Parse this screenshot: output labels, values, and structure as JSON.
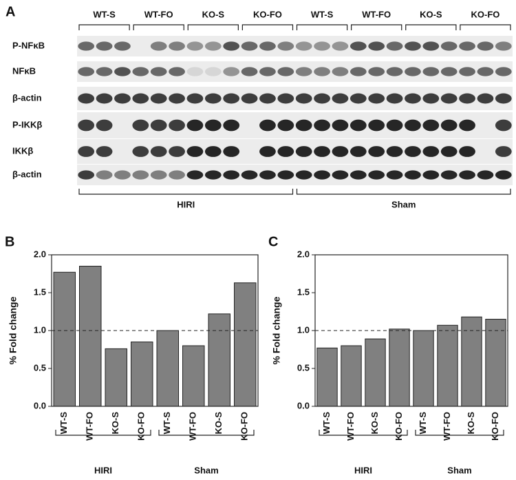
{
  "panel_a": {
    "label": "A",
    "groups": [
      "WT-S",
      "WT-FO",
      "KO-S",
      "KO-FO",
      "WT-S",
      "WT-FO",
      "KO-S",
      "KO-FO"
    ],
    "rows": [
      "P-NFκB",
      "NFκB",
      "β-actin",
      "P-IKKβ",
      "IKKβ",
      "β-actin"
    ],
    "conditions": [
      "HIRI",
      "Sham"
    ]
  },
  "chart_data": [
    {
      "type": "bar",
      "panel_label": "B",
      "ylabel": "% Fold change",
      "categories": [
        "WT-S",
        "WT-FO",
        "KO-S",
        "KO-FO",
        "WT-S",
        "WT-FO",
        "KO-S",
        "KO-FO"
      ],
      "values": [
        1.77,
        1.85,
        0.76,
        0.85,
        1.0,
        0.8,
        1.22,
        1.63
      ],
      "color": "#808080",
      "ylim": [
        0,
        2
      ],
      "yticks": [
        {
          "value": 0,
          "label": "0.0"
        },
        {
          "value": 0.5,
          "label": "0.5"
        },
        {
          "value": 1,
          "label": "1.0"
        },
        {
          "value": 1.5,
          "label": "1.5"
        },
        {
          "value": 2,
          "label": "2.0"
        }
      ],
      "reference_line": 1,
      "groups": [
        "HIRI",
        "Sham"
      ]
    },
    {
      "type": "bar",
      "panel_label": "C",
      "ylabel": "% Fold change",
      "categories": [
        "WT-S",
        "WT-FO",
        "KO-S",
        "KO-FO",
        "WT-S",
        "WT-FO",
        "KO-S",
        "KO-FO"
      ],
      "values": [
        0.77,
        0.8,
        0.89,
        1.02,
        1.0,
        1.07,
        1.18,
        1.15
      ],
      "color": "#808080",
      "ylim": [
        0,
        2
      ],
      "yticks": [
        {
          "value": 0,
          "label": "0.0"
        },
        {
          "value": 0.5,
          "label": "0.5"
        },
        {
          "value": 1,
          "label": "1.0"
        },
        {
          "value": 1.5,
          "label": "1.5"
        },
        {
          "value": 2,
          "label": "2.0"
        }
      ],
      "reference_line": 1,
      "groups": [
        "HIRI",
        "Sham"
      ]
    }
  ]
}
